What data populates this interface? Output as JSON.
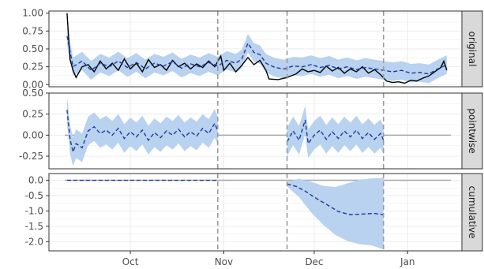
{
  "chart_data": {
    "type": "line",
    "x_axis": {
      "type": "date",
      "range": [
        "2017-09-04",
        "2018-01-19"
      ],
      "ticks": [
        "2017-10-01",
        "2017-11-01",
        "2017-12-01",
        "2018-01-01"
      ],
      "tick_labels": [
        "Oct",
        "Nov",
        "Dec",
        "Jan"
      ]
    },
    "vlines": [
      "2017-10-30",
      "2017-11-22",
      "2017-12-24"
    ],
    "colors": {
      "observed": "#000000",
      "prediction": "#1f3b9c",
      "band": "#b8d2ef",
      "vline": "#9b9b9b",
      "zero_line": "#a6a6a6",
      "panel_bg": "#ffffff",
      "grid": "#ebebeb",
      "strip_bg": "#d9d9d9",
      "border": "#333333"
    },
    "grid": true,
    "panels": [
      {
        "strip": "original",
        "ylim": [
          -0.03,
          1.03
        ],
        "yticks": [
          0.0,
          0.25,
          0.5,
          0.75,
          1.0
        ],
        "ytick_labels": [
          "0.00",
          "0.25",
          "0.50",
          "0.75",
          "1.00"
        ],
        "observed": [
          [
            "2017-09-10",
            1.0
          ],
          [
            "2017-09-11",
            0.35
          ],
          [
            "2017-09-12",
            0.2
          ],
          [
            "2017-09-13",
            0.1
          ],
          [
            "2017-09-15",
            0.25
          ],
          [
            "2017-09-17",
            0.28
          ],
          [
            "2017-09-19",
            0.18
          ],
          [
            "2017-09-21",
            0.33
          ],
          [
            "2017-09-23",
            0.22
          ],
          [
            "2017-09-25",
            0.3
          ],
          [
            "2017-09-27",
            0.2
          ],
          [
            "2017-09-29",
            0.36
          ],
          [
            "2017-10-01",
            0.22
          ],
          [
            "2017-10-03",
            0.3
          ],
          [
            "2017-10-05",
            0.18
          ],
          [
            "2017-10-07",
            0.35
          ],
          [
            "2017-10-09",
            0.24
          ],
          [
            "2017-10-11",
            0.28
          ],
          [
            "2017-10-13",
            0.2
          ],
          [
            "2017-10-15",
            0.34
          ],
          [
            "2017-10-17",
            0.25
          ],
          [
            "2017-10-19",
            0.3
          ],
          [
            "2017-10-21",
            0.22
          ],
          [
            "2017-10-23",
            0.29
          ],
          [
            "2017-10-25",
            0.24
          ],
          [
            "2017-10-27",
            0.33
          ],
          [
            "2017-10-29",
            0.25
          ],
          [
            "2017-10-31",
            0.4
          ],
          [
            "2017-11-01",
            0.2
          ],
          [
            "2017-11-03",
            0.3
          ],
          [
            "2017-11-05",
            0.18
          ],
          [
            "2017-11-07",
            0.27
          ],
          [
            "2017-11-09",
            0.38
          ],
          [
            "2017-11-11",
            0.28
          ],
          [
            "2017-11-13",
            0.34
          ],
          [
            "2017-11-15",
            0.2
          ],
          [
            "2017-11-16",
            0.08
          ],
          [
            "2017-11-19",
            0.07
          ],
          [
            "2017-11-22",
            0.1
          ],
          [
            "2017-11-25",
            0.15
          ],
          [
            "2017-11-27",
            0.22
          ],
          [
            "2017-11-29",
            0.18
          ],
          [
            "2017-12-01",
            0.2
          ],
          [
            "2017-12-03",
            0.17
          ],
          [
            "2017-12-05",
            0.26
          ],
          [
            "2017-12-07",
            0.19
          ],
          [
            "2017-12-09",
            0.24
          ],
          [
            "2017-12-11",
            0.16
          ],
          [
            "2017-12-13",
            0.22
          ],
          [
            "2017-12-15",
            0.18
          ],
          [
            "2017-12-17",
            0.25
          ],
          [
            "2017-12-19",
            0.16
          ],
          [
            "2017-12-21",
            0.21
          ],
          [
            "2017-12-23",
            0.14
          ],
          [
            "2017-12-25",
            0.05
          ],
          [
            "2017-12-27",
            0.03
          ],
          [
            "2017-12-29",
            0.04
          ],
          [
            "2017-12-31",
            0.02
          ],
          [
            "2018-01-02",
            0.06
          ],
          [
            "2018-01-04",
            0.05
          ],
          [
            "2018-01-06",
            0.09
          ],
          [
            "2018-01-08",
            0.12
          ],
          [
            "2018-01-10",
            0.18
          ],
          [
            "2018-01-12",
            0.24
          ],
          [
            "2018-01-13",
            0.33
          ],
          [
            "2018-01-14",
            0.2
          ]
        ],
        "prediction": [
          [
            "2017-09-10",
            0.68
          ],
          [
            "2017-09-12",
            0.25
          ],
          [
            "2017-09-15",
            0.33
          ],
          [
            "2017-09-18",
            0.2
          ],
          [
            "2017-09-21",
            0.3
          ],
          [
            "2017-09-24",
            0.25
          ],
          [
            "2017-09-27",
            0.33
          ],
          [
            "2017-09-30",
            0.24
          ],
          [
            "2017-10-03",
            0.31
          ],
          [
            "2017-10-06",
            0.22
          ],
          [
            "2017-10-09",
            0.3
          ],
          [
            "2017-10-12",
            0.26
          ],
          [
            "2017-10-15",
            0.32
          ],
          [
            "2017-10-18",
            0.23
          ],
          [
            "2017-10-21",
            0.29
          ],
          [
            "2017-10-24",
            0.25
          ],
          [
            "2017-10-27",
            0.31
          ],
          [
            "2017-10-30",
            0.26
          ],
          [
            "2017-11-02",
            0.34
          ],
          [
            "2017-11-05",
            0.3
          ],
          [
            "2017-11-07",
            0.36
          ],
          [
            "2017-11-09",
            0.58
          ],
          [
            "2017-11-11",
            0.45
          ],
          [
            "2017-11-13",
            0.42
          ],
          [
            "2017-11-15",
            0.3
          ],
          [
            "2017-11-18",
            0.24
          ],
          [
            "2017-11-21",
            0.22
          ],
          [
            "2017-11-24",
            0.26
          ],
          [
            "2017-11-27",
            0.25
          ],
          [
            "2017-11-30",
            0.28
          ],
          [
            "2017-12-03",
            0.24
          ],
          [
            "2017-12-06",
            0.27
          ],
          [
            "2017-12-09",
            0.22
          ],
          [
            "2017-12-12",
            0.25
          ],
          [
            "2017-12-15",
            0.21
          ],
          [
            "2017-12-18",
            0.24
          ],
          [
            "2017-12-21",
            0.22
          ],
          [
            "2017-12-24",
            0.2
          ],
          [
            "2017-12-27",
            0.18
          ],
          [
            "2017-12-30",
            0.2
          ],
          [
            "2018-01-02",
            0.16
          ],
          [
            "2018-01-05",
            0.17
          ],
          [
            "2018-01-08",
            0.15
          ],
          [
            "2018-01-11",
            0.22
          ],
          [
            "2018-01-14",
            0.28
          ]
        ],
        "band_halfwidth": 0.13
      },
      {
        "strip": "pointwise",
        "ylim": [
          -0.4,
          0.5
        ],
        "yticks": [
          -0.25,
          0.0,
          0.25,
          0.5
        ],
        "ytick_labels": [
          "-0.25",
          "0.00",
          "0.25",
          "0.50"
        ],
        "zero_line": 0.0,
        "segments": [
          [
            [
              "2017-09-10",
              0.3
            ],
            [
              "2017-09-11",
              -0.05
            ],
            [
              "2017-09-12",
              -0.2
            ],
            [
              "2017-09-13",
              -0.1
            ],
            [
              "2017-09-15",
              -0.15
            ],
            [
              "2017-09-17",
              0.05
            ],
            [
              "2017-09-19",
              0.1
            ],
            [
              "2017-09-21",
              0.02
            ],
            [
              "2017-09-23",
              0.06
            ],
            [
              "2017-09-25",
              0.0
            ],
            [
              "2017-09-27",
              0.08
            ],
            [
              "2017-09-29",
              -0.04
            ],
            [
              "2017-10-01",
              0.04
            ],
            [
              "2017-10-03",
              -0.02
            ],
            [
              "2017-10-05",
              0.06
            ],
            [
              "2017-10-07",
              -0.06
            ],
            [
              "2017-10-09",
              0.03
            ],
            [
              "2017-10-11",
              -0.03
            ],
            [
              "2017-10-13",
              0.05
            ],
            [
              "2017-10-15",
              0.0
            ],
            [
              "2017-10-17",
              0.07
            ],
            [
              "2017-10-19",
              -0.02
            ],
            [
              "2017-10-21",
              0.04
            ],
            [
              "2017-10-23",
              -0.01
            ],
            [
              "2017-10-25",
              0.08
            ],
            [
              "2017-10-27",
              0.02
            ],
            [
              "2017-10-29",
              0.14
            ],
            [
              "2017-10-30",
              0.05
            ]
          ],
          [
            [
              "2017-11-22",
              -0.08
            ],
            [
              "2017-11-24",
              0.05
            ],
            [
              "2017-11-26",
              -0.06
            ],
            [
              "2017-11-28",
              0.18
            ],
            [
              "2017-11-29",
              -0.1
            ],
            [
              "2017-12-01",
              0.0
            ],
            [
              "2017-12-03",
              0.06
            ],
            [
              "2017-12-05",
              -0.05
            ],
            [
              "2017-12-07",
              0.04
            ],
            [
              "2017-12-09",
              -0.04
            ],
            [
              "2017-12-11",
              0.05
            ],
            [
              "2017-12-13",
              -0.02
            ],
            [
              "2017-12-15",
              0.06
            ],
            [
              "2017-12-17",
              -0.04
            ],
            [
              "2017-12-19",
              0.03
            ],
            [
              "2017-12-21",
              -0.05
            ],
            [
              "2017-12-23",
              0.02
            ],
            [
              "2017-12-24",
              -0.06
            ]
          ]
        ],
        "band_halfwidth": 0.17
      },
      {
        "strip": "cumulative",
        "ylim": [
          -2.3,
          0.22
        ],
        "yticks": [
          -2.0,
          -1.5,
          -1.0,
          -0.5,
          0.0
        ],
        "ytick_labels": [
          "-2.0",
          "-1.5",
          "-1.0",
          "-0.5",
          "0.0"
        ],
        "zero_line": 0.0,
        "segments": [
          [
            [
              "2017-09-10",
              0.0
            ],
            [
              "2017-10-30",
              0.0
            ]
          ],
          [
            [
              "2017-11-22",
              -0.12
            ],
            [
              "2017-11-25",
              -0.2
            ],
            [
              "2017-11-28",
              -0.35
            ],
            [
              "2017-12-01",
              -0.55
            ],
            [
              "2017-12-05",
              -0.78
            ],
            [
              "2017-12-09",
              -1.02
            ],
            [
              "2017-12-13",
              -1.12
            ],
            [
              "2017-12-17",
              -1.1
            ],
            [
              "2017-12-21",
              -1.08
            ],
            [
              "2017-12-24",
              -1.12
            ]
          ]
        ],
        "band": [
          [
            "2017-11-22",
            -0.05,
            -0.2
          ],
          [
            "2017-11-26",
            0.05,
            -0.55
          ],
          [
            "2017-11-30",
            -0.05,
            -1.05
          ],
          [
            "2017-12-04",
            -0.18,
            -1.45
          ],
          [
            "2017-12-08",
            -0.22,
            -1.78
          ],
          [
            "2017-12-12",
            -0.1,
            -1.98
          ],
          [
            "2017-12-16",
            0.02,
            -2.08
          ],
          [
            "2017-12-20",
            0.06,
            -2.12
          ],
          [
            "2017-12-24",
            0.08,
            -2.25
          ]
        ]
      }
    ]
  }
}
